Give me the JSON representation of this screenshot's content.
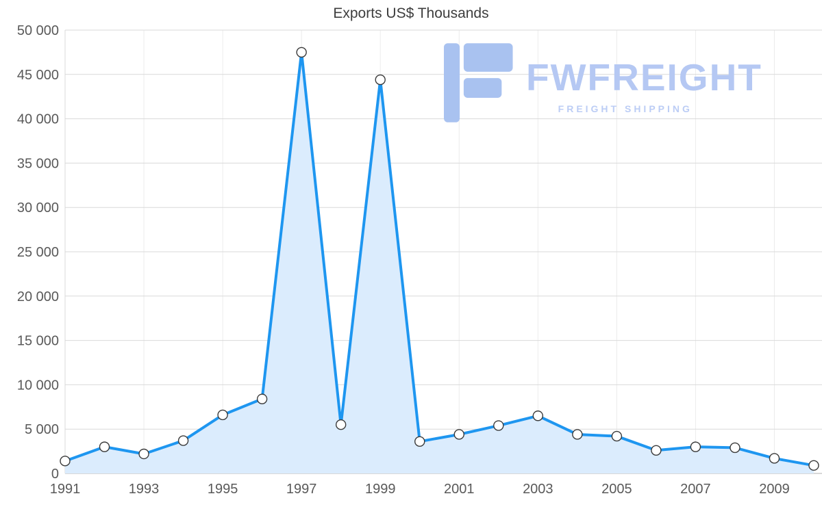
{
  "watermark": {
    "brand": "FWFREIGHT",
    "tagline": "FREIGHT SHIPPING",
    "brand_color": "#b5c8f3",
    "logo_color": "#a9c2f0"
  },
  "chart_data": {
    "type": "area",
    "title": "Exports US$ Thousands",
    "xlabel": "",
    "ylabel": "",
    "x": [
      1991,
      1992,
      1993,
      1994,
      1995,
      1996,
      1997,
      1998,
      1999,
      2000,
      2001,
      2002,
      2003,
      2004,
      2005,
      2006,
      2007,
      2008,
      2009,
      2010
    ],
    "values": [
      1400,
      3000,
      2200,
      3700,
      6600,
      8400,
      47500,
      5500,
      44400,
      3600,
      4400,
      5400,
      6500,
      4400,
      4200,
      2600,
      3000,
      2900,
      1700,
      900
    ],
    "ylim": [
      0,
      50000
    ],
    "ytick_step": 5000,
    "y_tick_labels": [
      "0",
      "5 000",
      "10 000",
      "15 000",
      "20 000",
      "25 000",
      "30 000",
      "35 000",
      "40 000",
      "45 000",
      "50 000"
    ],
    "x_tick_labels": [
      "1991",
      "1993",
      "1995",
      "1997",
      "1999",
      "2001",
      "2003",
      "2005",
      "2007",
      "2009"
    ],
    "grid": true,
    "legend": "none",
    "line_color": "#1e96f0",
    "fill_color": "#dbecfd",
    "marker_fill": "#ffffff",
    "marker_stroke": "#3a3a3a",
    "grid_color": "#d9d9d9",
    "vgrid_color": "#ececec",
    "axis_color": "#b0b0b0",
    "label_color": "#595959",
    "title_color": "#3d3d3d"
  }
}
